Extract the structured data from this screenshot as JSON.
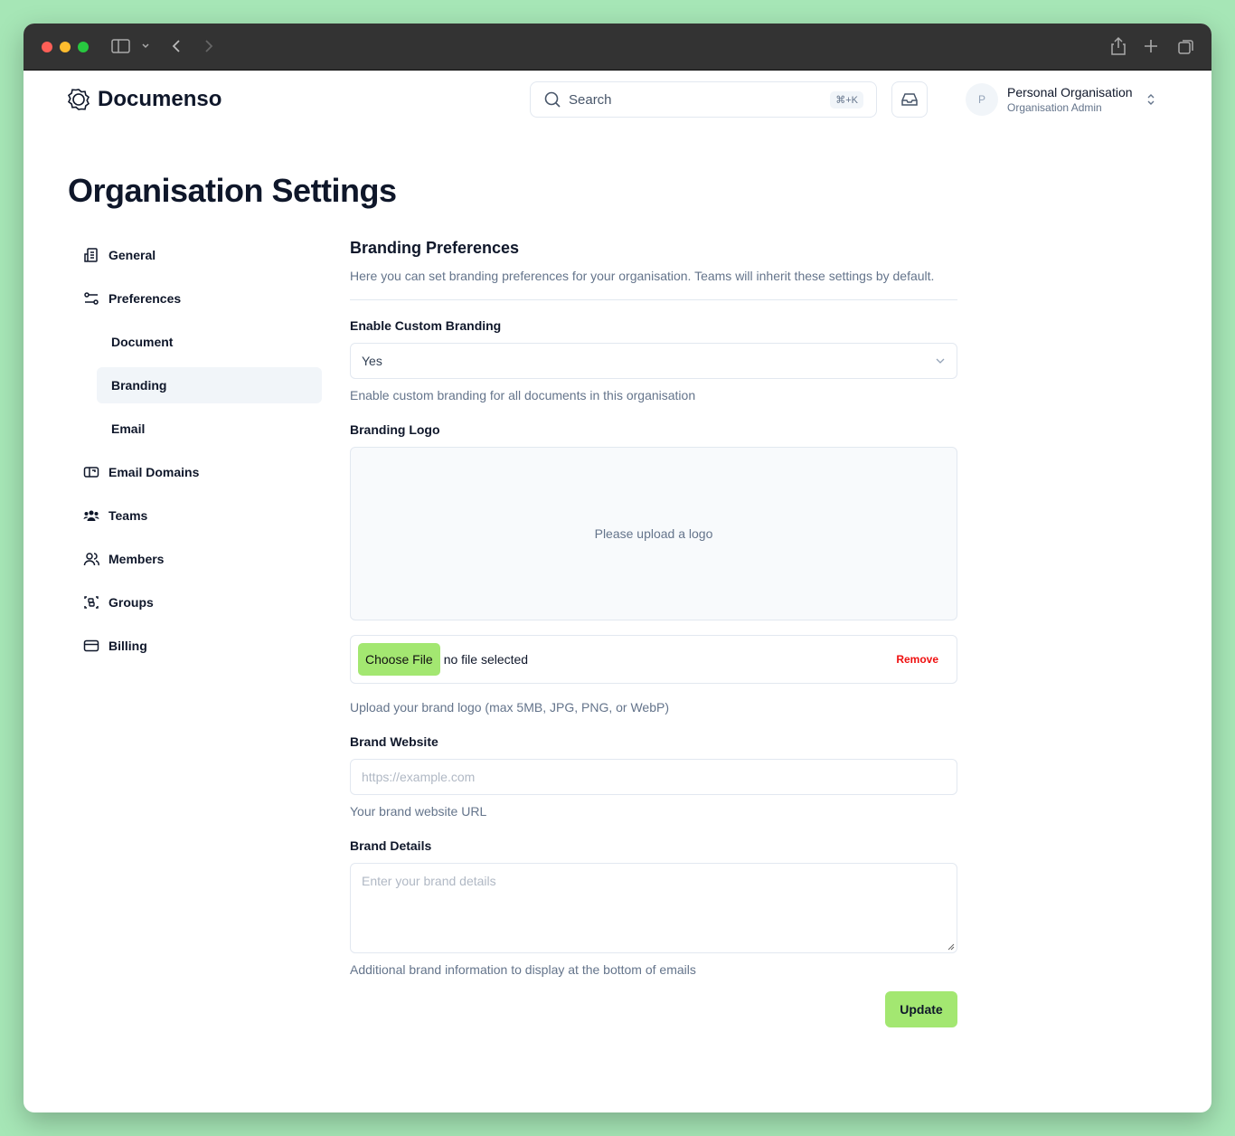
{
  "app": {
    "name": "Documenso"
  },
  "header": {
    "search_placeholder": "Search",
    "search_shortcut": "⌘+K",
    "account": {
      "initial": "P",
      "name": "Personal Organisation",
      "role": "Organisation Admin"
    }
  },
  "page_title": "Organisation Settings",
  "sidebar": {
    "items": [
      {
        "label": "General",
        "icon": "building-icon"
      },
      {
        "label": "Preferences",
        "icon": "sliders-icon"
      },
      {
        "label": "Document",
        "sub": true
      },
      {
        "label": "Branding",
        "sub": true,
        "active": true
      },
      {
        "label": "Email",
        "sub": true
      },
      {
        "label": "Email Domains",
        "icon": "mailbox-icon"
      },
      {
        "label": "Teams",
        "icon": "users-icon"
      },
      {
        "label": "Members",
        "icon": "members-icon"
      },
      {
        "label": "Groups",
        "icon": "group-icon"
      },
      {
        "label": "Billing",
        "icon": "credit-card-icon"
      }
    ]
  },
  "branding": {
    "title": "Branding Preferences",
    "description": "Here you can set branding preferences for your organisation. Teams will inherit these settings by default.",
    "enable_label": "Enable Custom Branding",
    "enable_value": "Yes",
    "enable_help": "Enable custom branding for all documents in this organisation",
    "logo_label": "Branding Logo",
    "logo_placeholder": "Please upload a logo",
    "choose_file": "Choose File",
    "no_file": "no file selected",
    "remove": "Remove",
    "logo_help": "Upload your brand logo (max 5MB, JPG, PNG, or WebP)",
    "website_label": "Brand Website",
    "website_placeholder": "https://example.com",
    "website_help": "Your brand website URL",
    "details_label": "Brand Details",
    "details_placeholder": "Enter your brand details",
    "details_help": "Additional brand information to display at the bottom of emails",
    "update": "Update"
  },
  "colors": {
    "accent": "#a3e771",
    "danger": "#ef1010",
    "background": "#a6e6b6"
  }
}
